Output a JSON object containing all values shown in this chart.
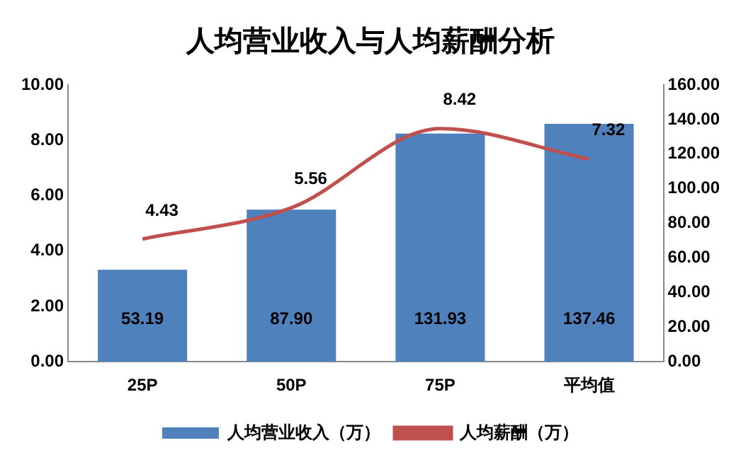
{
  "chart_data": {
    "type": "bar",
    "title": "人均营业收入与人均薪酬分析",
    "categories": [
      "25P",
      "50P",
      "75P",
      "平均值"
    ],
    "series": [
      {
        "name": "人均营业收入（万）",
        "axis": "y2",
        "color": "#4f81bd",
        "values": [
          53.19,
          87.9,
          131.93,
          137.46
        ],
        "value_labels": [
          "53.19",
          "87.90",
          "131.93",
          "137.46"
        ]
      },
      {
        "name": "人均薪酬（万）",
        "type": "line",
        "axis": "y",
        "color": "#c0504d",
        "values": [
          4.43,
          5.56,
          8.42,
          7.32
        ],
        "value_labels": [
          "4.43",
          "5.56",
          "8.42",
          "7.32"
        ]
      }
    ],
    "ylim": [
      0,
      10
    ],
    "yticks": [
      {
        "value": 0,
        "label": "0.00"
      },
      {
        "value": 2,
        "label": "2.00"
      },
      {
        "value": 4,
        "label": "4.00"
      },
      {
        "value": 6,
        "label": "6.00"
      },
      {
        "value": 8,
        "label": "8.00"
      },
      {
        "value": 10,
        "label": "10.00"
      }
    ],
    "y2lim": [
      0,
      160
    ],
    "y2ticks": [
      {
        "value": 0,
        "label": "0.00"
      },
      {
        "value": 20,
        "label": "20.00"
      },
      {
        "value": 40,
        "label": "40.00"
      },
      {
        "value": 60,
        "label": "60.00"
      },
      {
        "value": 80,
        "label": "80.00"
      },
      {
        "value": 100,
        "label": "100.00"
      },
      {
        "value": 120,
        "label": "120.00"
      },
      {
        "value": 140,
        "label": "140.00"
      },
      {
        "value": 160,
        "label": "160.00"
      }
    ],
    "grid": false,
    "legend": "bottom",
    "marker": "none"
  }
}
